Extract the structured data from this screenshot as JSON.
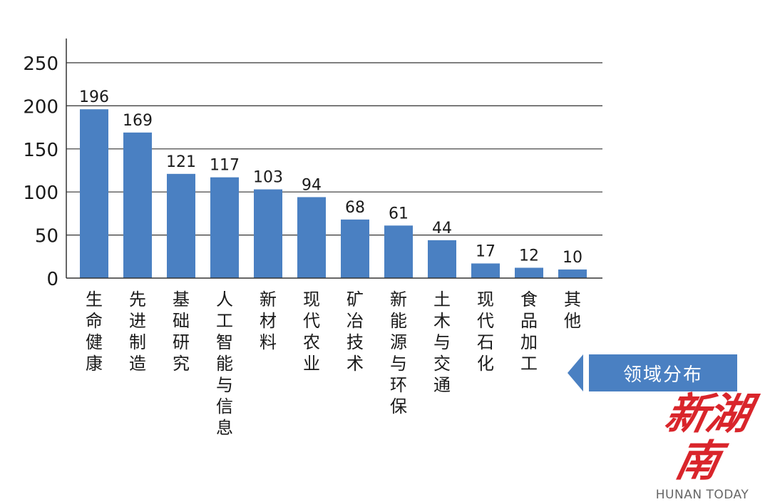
{
  "chart_data": {
    "type": "bar",
    "categories": [
      "生命健康",
      "先进制造",
      "基础研究",
      "人工智能与信息",
      "新材料",
      "现代农业",
      "矿冶技术",
      "新能源与环保",
      "土木与交通",
      "现代石化",
      "食品加工",
      "其他"
    ],
    "values": [
      196,
      169,
      121,
      117,
      103,
      94,
      68,
      61,
      44,
      17,
      12,
      10
    ],
    "yticks": [
      "0",
      "50",
      "100",
      "150",
      "200",
      "250"
    ],
    "ylim": [
      0,
      250
    ],
    "grid": true,
    "bar_color": "#4a80c2"
  },
  "badge": {
    "label": "领域分布"
  },
  "logo": {
    "cn": "新湖南",
    "en": "HUNAN TODAY"
  }
}
